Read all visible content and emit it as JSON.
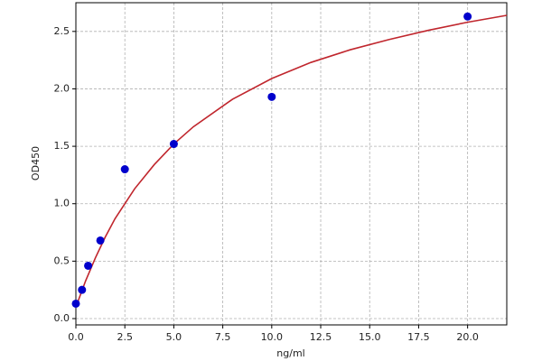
{
  "chart_data": {
    "type": "scatter",
    "xlabel": "ng/ml",
    "ylabel": "OD450",
    "xlim": [
      0,
      22
    ],
    "ylim": [
      -0.055,
      2.75
    ],
    "xticks": [
      {
        "value": 0,
        "label": "0.0"
      },
      2.5,
      {
        "value": 5,
        "label": "5.0"
      },
      7.5,
      {
        "value": 10,
        "label": "10.0"
      },
      12.5,
      {
        "value": 15,
        "label": "15.0"
      },
      17.5,
      {
        "value": 20,
        "label": "20.0"
      }
    ],
    "yticks": [
      {
        "value": 0,
        "label": "0.0"
      },
      0.5,
      {
        "value": 1,
        "label": "1.0"
      },
      1.5,
      {
        "value": 2,
        "label": "2.0"
      },
      2.5
    ],
    "grid": true,
    "points": {
      "color": "#0000cc",
      "x": [
        0,
        0.3125,
        0.625,
        1.25,
        2.5,
        5,
        10,
        20
      ],
      "values": [
        0.13,
        0.25,
        0.46,
        0.68,
        1.3,
        1.52,
        1.93,
        2.63
      ]
    },
    "fit": {
      "color": "#c0262d",
      "x": [
        0,
        0.5,
        1,
        1.5,
        2,
        3,
        4,
        5,
        6,
        8,
        10,
        12,
        14,
        16,
        18,
        20,
        22
      ],
      "values": [
        0.1,
        0.33,
        0.53,
        0.71,
        0.87,
        1.13,
        1.34,
        1.52,
        1.67,
        1.91,
        2.09,
        2.23,
        2.34,
        2.43,
        2.51,
        2.58,
        2.64
      ]
    }
  }
}
